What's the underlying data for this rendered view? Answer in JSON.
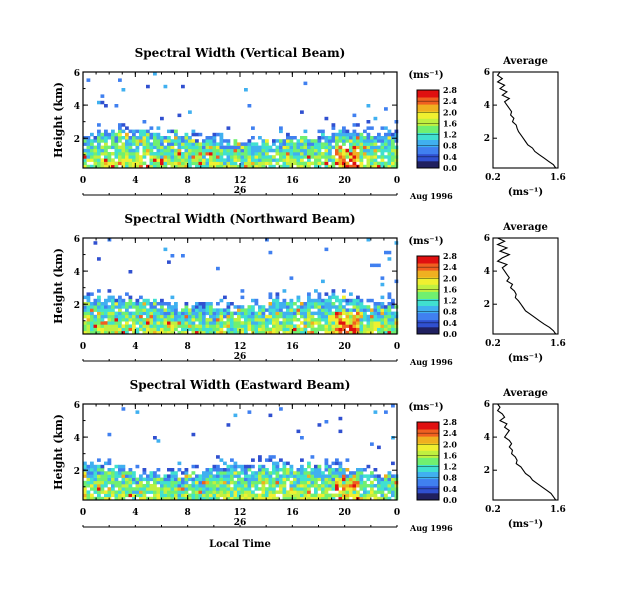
{
  "figure": {
    "xlabel": "Local Time",
    "date_label": "Aug 1996",
    "day_label": "26",
    "cbar_unit": "(ms⁻¹)",
    "avg_title": "Average",
    "avg_xlabel": "(ms⁻¹)",
    "ylabel": "Height (km)"
  },
  "colors": {
    "scale": [
      "#202060",
      "#3050d0",
      "#4080f0",
      "#40b0f0",
      "#40e0d0",
      "#70f070",
      "#c0f040",
      "#f0f030",
      "#f0b020",
      "#f06020",
      "#e01010"
    ]
  },
  "chart_data": [
    {
      "type": "heatmap",
      "title": "Spectral Width (Vertical Beam)",
      "xlabel": "Local Time",
      "ylabel": "Height (km)",
      "xlim": [
        0,
        24
      ],
      "ylim": [
        0.2,
        6
      ],
      "x_ticks": [
        "0",
        "4",
        "8",
        "12",
        "16",
        "20",
        "0"
      ],
      "y_ticks": [
        "6",
        "4",
        "2"
      ],
      "colorbar": {
        "unit": "(ms⁻¹)",
        "range": [
          0,
          2.8
        ],
        "ticks": [
          "2.8",
          "2.4",
          "2.0",
          "1.6",
          "1.2",
          "0.8",
          "0.4",
          "0.0"
        ]
      },
      "profile": {
        "title": "Average",
        "xlabel": "(ms⁻¹)",
        "x_ticks": [
          "0.2",
          "1.6"
        ],
        "y_ticks": [
          "6",
          "4",
          "2"
        ],
        "xlim": [
          0.2,
          1.6
        ],
        "ylim": [
          0.2,
          6
        ],
        "height_km": [
          6.0,
          5.8,
          5.6,
          5.4,
          5.2,
          5.0,
          4.8,
          4.6,
          4.4,
          4.2,
          4.0,
          3.8,
          3.6,
          3.4,
          3.2,
          3.0,
          2.8,
          2.6,
          2.4,
          2.2,
          2.0,
          1.8,
          1.6,
          1.4,
          1.2,
          1.0,
          0.8,
          0.6,
          0.4,
          0.2
        ],
        "width_ms": [
          0.35,
          0.3,
          0.4,
          0.3,
          0.45,
          0.35,
          0.5,
          0.4,
          0.55,
          0.45,
          0.5,
          0.55,
          0.6,
          0.58,
          0.65,
          0.62,
          0.7,
          0.72,
          0.75,
          0.8,
          0.85,
          0.9,
          0.95,
          1.05,
          1.1,
          1.2,
          1.3,
          1.4,
          1.5,
          1.55
        ]
      }
    },
    {
      "type": "heatmap",
      "title": "Spectral Width (Northward Beam)",
      "xlabel": "Local Time",
      "ylabel": "Height (km)",
      "xlim": [
        0,
        24
      ],
      "ylim": [
        0.2,
        6
      ],
      "x_ticks": [
        "0",
        "4",
        "8",
        "12",
        "16",
        "20",
        "0"
      ],
      "y_ticks": [
        "6",
        "4",
        "2"
      ],
      "colorbar": {
        "unit": "(ms⁻¹)",
        "range": [
          0,
          2.8
        ],
        "ticks": [
          "2.8",
          "2.4",
          "2.0",
          "1.6",
          "1.2",
          "0.8",
          "0.4",
          "0.0"
        ]
      },
      "profile": {
        "title": "Average",
        "xlabel": "(ms⁻¹)",
        "x_ticks": [
          "0.2",
          "1.6"
        ],
        "y_ticks": [
          "6",
          "4",
          "2"
        ],
        "xlim": [
          0.2,
          1.6
        ],
        "ylim": [
          0.2,
          6
        ],
        "height_km": [
          6.0,
          5.8,
          5.6,
          5.4,
          5.2,
          5.0,
          4.8,
          4.6,
          4.4,
          4.2,
          4.0,
          3.8,
          3.6,
          3.4,
          3.2,
          3.0,
          2.8,
          2.6,
          2.4,
          2.2,
          2.0,
          1.8,
          1.6,
          1.4,
          1.2,
          1.0,
          0.8,
          0.6,
          0.4,
          0.2
        ],
        "width_ms": [
          0.3,
          0.45,
          0.3,
          0.5,
          0.35,
          0.55,
          0.4,
          0.3,
          0.5,
          0.4,
          0.45,
          0.5,
          0.55,
          0.5,
          0.62,
          0.58,
          0.66,
          0.7,
          0.68,
          0.75,
          0.8,
          0.85,
          0.9,
          1.0,
          1.1,
          1.2,
          1.3,
          1.42,
          1.5,
          1.55
        ]
      }
    },
    {
      "type": "heatmap",
      "title": "Spectral Width (Eastward Beam)",
      "xlabel": "Local Time",
      "ylabel": "Height (km)",
      "xlim": [
        0,
        24
      ],
      "ylim": [
        0.2,
        6
      ],
      "x_ticks": [
        "0",
        "4",
        "8",
        "12",
        "16",
        "20",
        "0"
      ],
      "y_ticks": [
        "6",
        "4",
        "2"
      ],
      "colorbar": {
        "unit": "(ms⁻¹)",
        "range": [
          0,
          2.8
        ],
        "ticks": [
          "2.8",
          "2.4",
          "2.0",
          "1.6",
          "1.2",
          "0.8",
          "0.4",
          "0.0"
        ]
      },
      "profile": {
        "title": "Average",
        "xlabel": "(ms⁻¹)",
        "x_ticks": [
          "0.2",
          "1.6"
        ],
        "y_ticks": [
          "6",
          "4",
          "2"
        ],
        "xlim": [
          0.2,
          1.6
        ],
        "ylim": [
          0.2,
          6
        ],
        "height_km": [
          6.0,
          5.8,
          5.6,
          5.4,
          5.2,
          5.0,
          4.8,
          4.6,
          4.4,
          4.2,
          4.0,
          3.8,
          3.6,
          3.4,
          3.2,
          3.0,
          2.8,
          2.6,
          2.4,
          2.2,
          2.0,
          1.8,
          1.6,
          1.4,
          1.2,
          1.0,
          0.8,
          0.6,
          0.4,
          0.2
        ],
        "width_ms": [
          0.3,
          0.35,
          0.3,
          0.4,
          0.45,
          0.35,
          0.5,
          0.45,
          0.55,
          0.5,
          0.45,
          0.55,
          0.6,
          0.55,
          0.62,
          0.6,
          0.68,
          0.72,
          0.7,
          0.8,
          0.85,
          0.9,
          1.0,
          1.05,
          1.15,
          1.25,
          1.35,
          1.45,
          1.5,
          1.55
        ]
      }
    }
  ]
}
